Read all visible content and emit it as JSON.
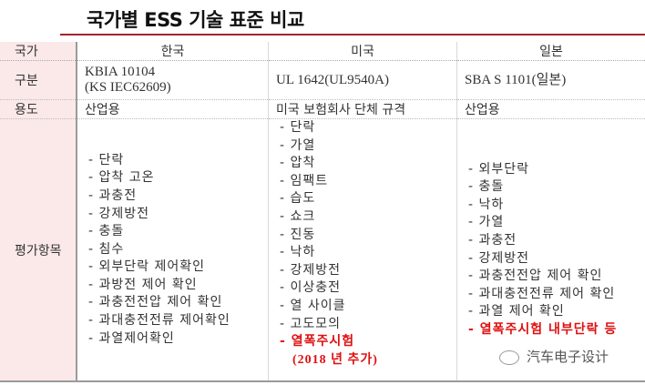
{
  "title": "국가별 ESS 기술 표준 비교",
  "header": {
    "label": "국가",
    "cols": [
      "한국",
      "미국",
      "일본"
    ]
  },
  "rows": {
    "standard": {
      "label": "구분",
      "korea": [
        "KBIA 10104",
        "(KS IEC62609)"
      ],
      "usa": "UL 1642(UL9540A)",
      "japan": "SBA S 1101(일본)"
    },
    "usage": {
      "label": "용도",
      "korea": "산업용",
      "usa": "미국 보험회사 단체 규격",
      "japan": "산업용"
    },
    "tests": {
      "label": "평가항목",
      "korea": [
        "단락",
        "압착 고온",
        "과충전",
        "강제방전",
        "충돌",
        "침수",
        "외부단락 제어확인",
        "과방전 제어 확인",
        "과충전전압 제어 확인",
        "과대충전전류 제어확인",
        "과열제어확인"
      ],
      "usa": [
        "단락",
        "가열",
        "압착",
        "임팩트",
        "습도",
        "쇼크",
        "진동",
        "낙하",
        "강제방전",
        "이상충전",
        "열 사이클",
        "고도모의"
      ],
      "usa_highlight": "열폭주시험",
      "usa_note": "(2018 년 추가)",
      "japan": [
        "외부단락",
        "충돌",
        "낙하",
        "가열",
        "과충전",
        "강제방전",
        "과충전전압 제어 확인",
        "과대충전전류 제어 확인",
        "과열 제어 확인"
      ],
      "japan_highlight": "열폭주시험 내부단락 등"
    }
  },
  "watermark": "汽车电子设计",
  "colors": {
    "accent": "#a3242b",
    "highlight": "#e01010",
    "label_bg": "#fbe8e9"
  }
}
